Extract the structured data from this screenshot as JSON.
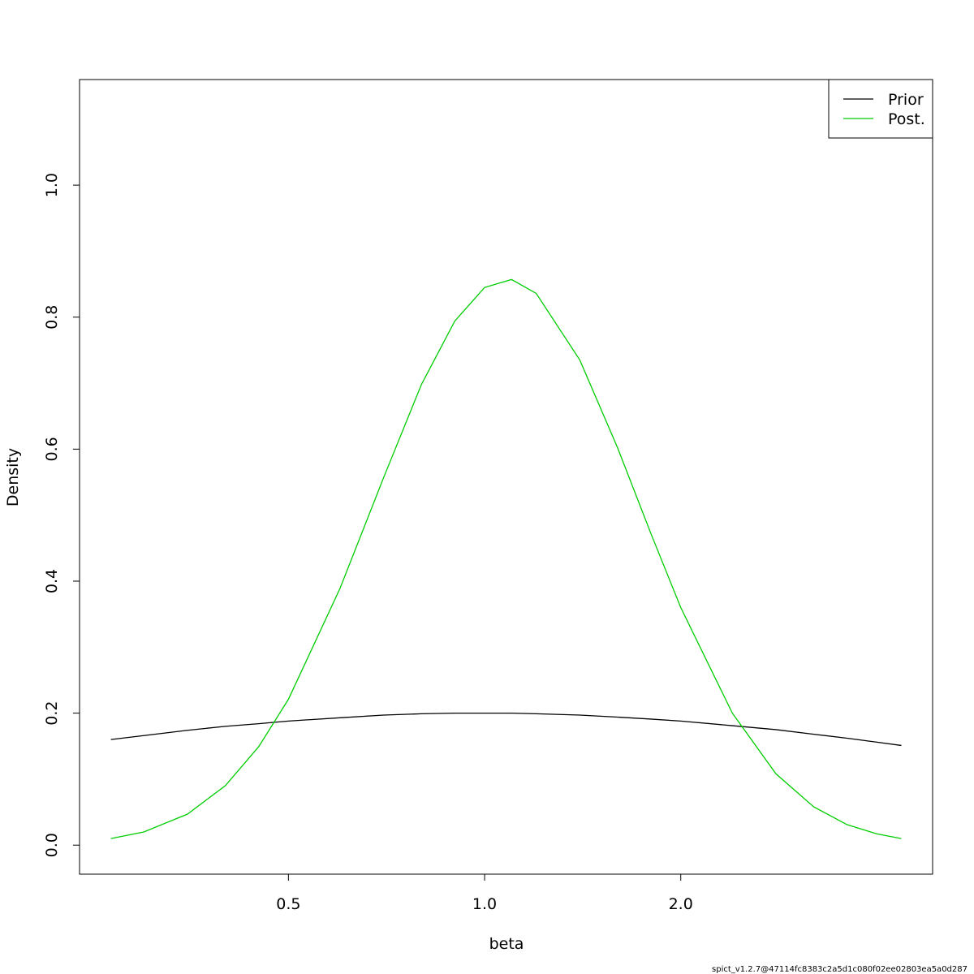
{
  "chart_data": {
    "type": "line",
    "xlabel": "beta",
    "ylabel": "Density",
    "footnote": "spict_v1.2.7@47114fc8383c2a5d1c080f02ee02803ea5a0d287",
    "xscale": "log",
    "x": [
      0.267,
      0.3,
      0.35,
      0.4,
      0.45,
      0.5,
      0.6,
      0.7,
      0.8,
      0.9,
      1.0,
      1.1,
      1.2,
      1.4,
      1.6,
      1.8,
      2.0,
      2.4,
      2.8,
      3.2,
      3.6,
      4.0,
      4.36
    ],
    "series": [
      {
        "name": "Prior",
        "color": "#000000",
        "values": [
          0.16,
          0.166,
          0.174,
          0.18,
          0.184,
          0.188,
          0.193,
          0.197,
          0.199,
          0.2,
          0.2,
          0.2,
          0.199,
          0.197,
          0.194,
          0.191,
          0.188,
          0.181,
          0.175,
          0.168,
          0.162,
          0.156,
          0.151
        ]
      },
      {
        "name": "Post.",
        "color": "#00cd00",
        "values": [
          0.01,
          0.02,
          0.047,
          0.09,
          0.149,
          0.221,
          0.389,
          0.557,
          0.698,
          0.794,
          0.845,
          0.857,
          0.836,
          0.735,
          0.602,
          0.472,
          0.36,
          0.2,
          0.108,
          0.058,
          0.031,
          0.017,
          0.01
        ]
      }
    ],
    "xlim": [
      0.239,
      4.87
    ],
    "xticks": [
      0.5,
      {
        "value": 1,
        "label": "1.0"
      },
      {
        "value": 2,
        "label": "2.0"
      }
    ],
    "ylim": [
      -0.044,
      1.16
    ],
    "yticks": [
      {
        "value": 0,
        "label": "0.0"
      },
      0.2,
      0.4,
      0.6,
      0.8,
      {
        "value": 1,
        "label": "1.0"
      }
    ],
    "legend": "top-right"
  }
}
